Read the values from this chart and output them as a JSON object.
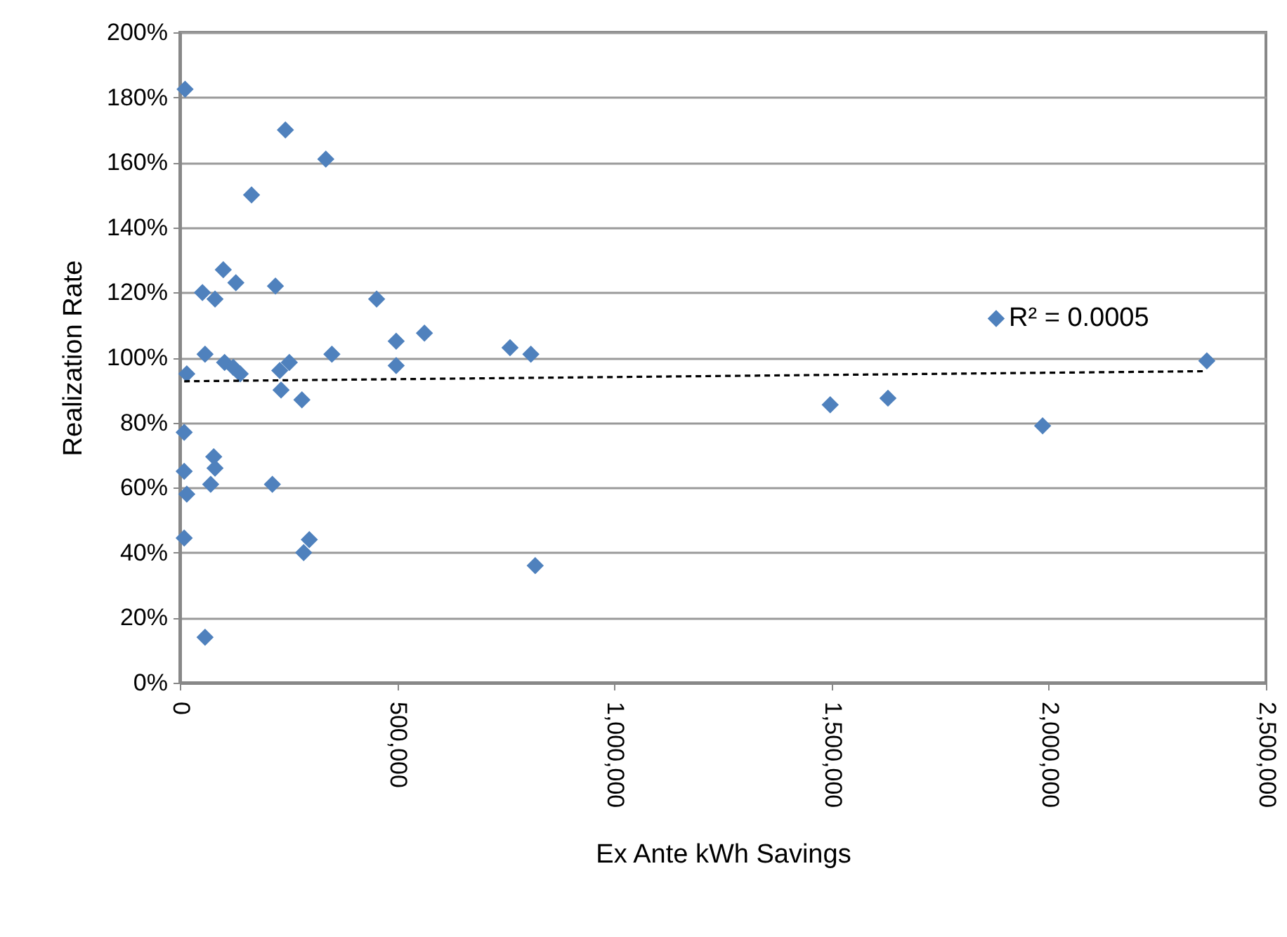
{
  "chart_data": {
    "type": "scatter",
    "xlabel": "Ex Ante kWh Savings",
    "ylabel": "Realization Rate",
    "series": [
      {
        "color": "#4f81bd",
        "x": [
          12000,
          243000,
          336000,
          165000,
          100000,
          129000,
          52000,
          81000,
          220000,
          453000,
          498000,
          350000,
          58000,
          103000,
          123000,
          139000,
          16000,
          230000,
          252000,
          233000,
          281000,
          498000,
          10000,
          10000,
          78000,
          81000,
          71000,
          16000,
          213000,
          10000,
          298000,
          285000,
          58000,
          563000,
          760000,
          808000,
          818000,
          1497000,
          1630000,
          1879000,
          1986000,
          2364000
        ],
        "values": [
          182.5,
          170,
          161,
          150,
          127,
          123,
          120,
          118,
          122,
          118,
          105,
          101,
          101,
          98.5,
          97,
          95,
          95,
          96,
          98.5,
          90,
          87,
          97.5,
          77,
          65,
          69.5,
          66,
          61,
          58,
          61,
          44.5,
          44,
          40,
          14,
          107.5,
          103,
          101,
          36,
          85.5,
          87.5,
          112,
          79,
          99
        ]
      },
      {
        "type": "line",
        "color": "#000000",
        "line_style": "dashed",
        "marker": "none",
        "x": [
          10000,
          2364000
        ],
        "values": [
          92.7,
          95.8
        ]
      }
    ],
    "xlim": [
      0,
      2500000
    ],
    "xticks": [
      {
        "value": 0,
        "label": "0"
      },
      {
        "value": 500000,
        "label": "500,000"
      },
      {
        "value": 1000000,
        "label": "1,000,000"
      },
      {
        "value": 1500000,
        "label": "1,500,000"
      },
      {
        "value": 2000000,
        "label": "2,000,000"
      },
      {
        "value": 2500000,
        "label": "2,500,000"
      }
    ],
    "ylim": [
      0,
      200
    ],
    "yticks": [
      {
        "value": 0,
        "label": "0%"
      },
      {
        "value": 20,
        "label": "20%"
      },
      {
        "value": 40,
        "label": "40%"
      },
      {
        "value": 60,
        "label": "60%"
      },
      {
        "value": 80,
        "label": "80%"
      },
      {
        "value": 100,
        "label": "100%"
      },
      {
        "value": 120,
        "label": "120%"
      },
      {
        "value": 140,
        "label": "140%"
      },
      {
        "value": 160,
        "label": "160%"
      },
      {
        "value": 180,
        "label": "180%"
      },
      {
        "value": 200,
        "label": "200%"
      }
    ],
    "grid": "y",
    "marker": "diamond",
    "annotations": [
      "R² = 0.0005"
    ]
  }
}
